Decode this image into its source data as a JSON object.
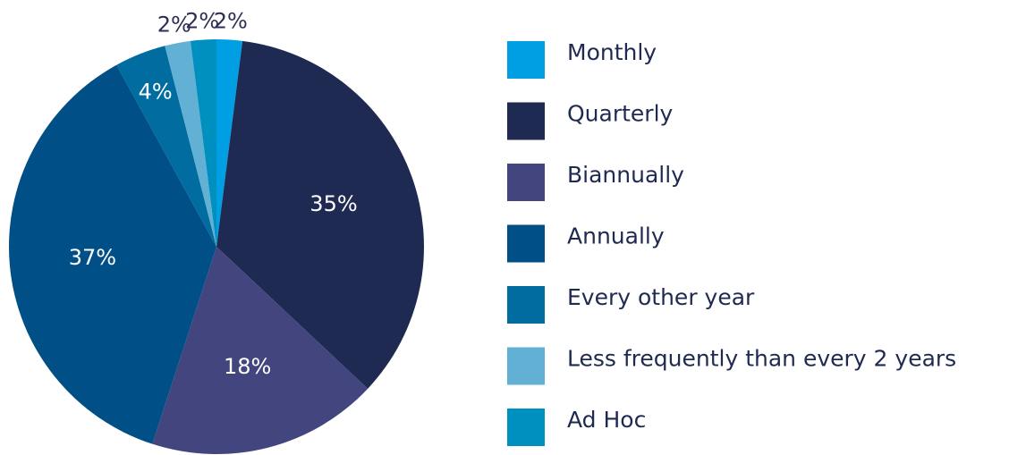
{
  "chart_data": {
    "type": "pie",
    "categories": [
      "Monthly",
      "Quarterly",
      "Biannually",
      "Annually",
      "Every other year",
      "Less frequently than every 2 years",
      "Ad Hoc"
    ],
    "values": [
      2,
      35,
      18,
      37,
      4,
      2,
      2
    ],
    "value_labels": [
      "2%",
      "35%",
      "18%",
      "37%",
      "4%",
      "2%",
      "2%"
    ],
    "colors": [
      "#009fe3",
      "#1f2a52",
      "#43467e",
      "#004f86",
      "#006c9f",
      "#62b0d4",
      "#0090bf"
    ],
    "legend": "right"
  }
}
